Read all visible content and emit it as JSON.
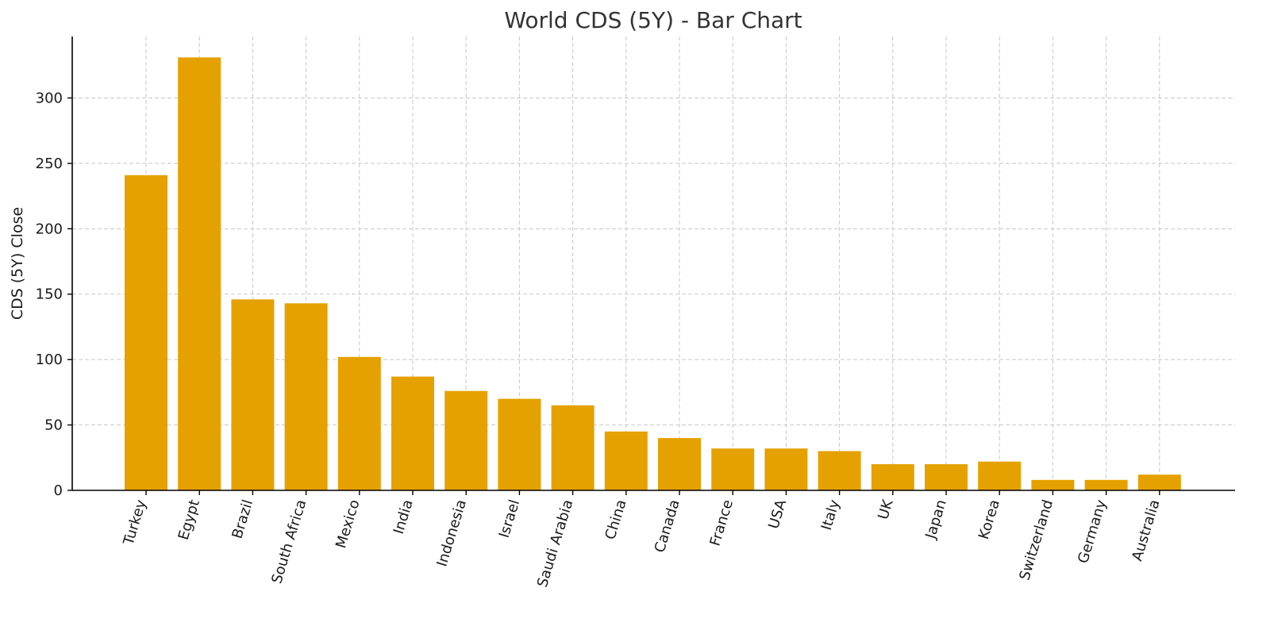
{
  "chart_data": {
    "type": "bar",
    "title": "World CDS (5Y) - Bar Chart",
    "xlabel": "",
    "ylabel": "CDS (5Y) Close",
    "categories": [
      "Turkey",
      "Egypt",
      "Brazil",
      "South Africa",
      "Mexico",
      "India",
      "Indonesia",
      "Israel",
      "Saudi Arabia",
      "China",
      "Canada",
      "France",
      "USA",
      "Italy",
      "UK",
      "Japan",
      "Korea",
      "Switzerland",
      "Germany",
      "Australia"
    ],
    "values": [
      241,
      331,
      146,
      143,
      102,
      87,
      76,
      70,
      65,
      45,
      40,
      32,
      32,
      30,
      20,
      20,
      22,
      8,
      8,
      12
    ],
    "ylim": [
      0,
      347
    ],
    "yticks": [
      0,
      50,
      100,
      150,
      200,
      250,
      300
    ],
    "grid": true,
    "bar_color": "#e5a100"
  }
}
